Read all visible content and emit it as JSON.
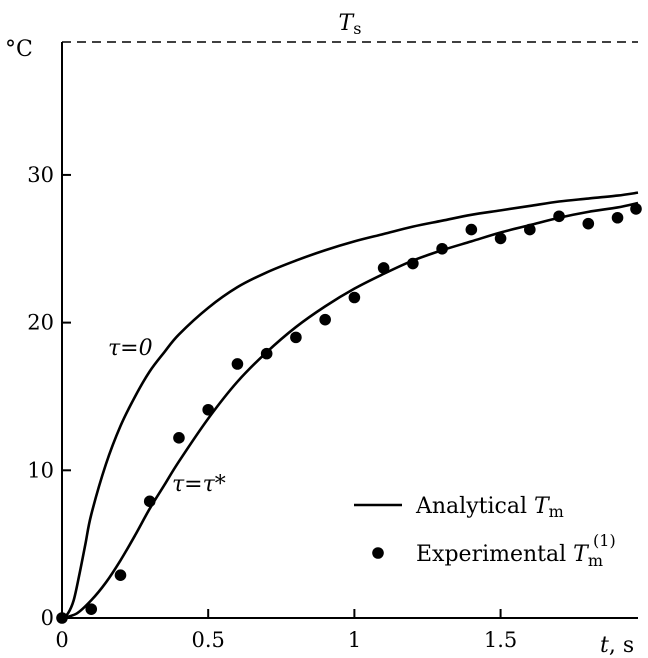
{
  "chart_data": {
    "type": "line",
    "x_axis": {
      "label_var": "t",
      "label_unit": ", s",
      "range": [
        0,
        1.97
      ],
      "ticks": [
        "0",
        "0.5",
        "1",
        "1.5"
      ],
      "tick_values": [
        0,
        0.5,
        1,
        1.5
      ]
    },
    "y_axis": {
      "unit_label": "°C",
      "range": [
        0,
        39
      ],
      "ticks": [
        "0",
        "10",
        "20",
        "30"
      ],
      "tick_values": [
        0,
        10,
        20,
        30
      ]
    },
    "reference_line": {
      "label_var": "T",
      "label_sub": "s",
      "y": 39,
      "style": "dashed"
    },
    "series": [
      {
        "kind": "line",
        "annotation": "τ=0",
        "x": [
          0,
          0.02,
          0.04,
          0.06,
          0.08,
          0.1,
          0.15,
          0.2,
          0.25,
          0.3,
          0.35,
          0.4,
          0.5,
          0.6,
          0.7,
          0.8,
          0.9,
          1.0,
          1.1,
          1.2,
          1.3,
          1.4,
          1.5,
          1.6,
          1.7,
          1.8,
          1.9,
          1.97
        ],
        "y": [
          0,
          0.3,
          1.2,
          3.0,
          5.0,
          7.0,
          10.4,
          13.0,
          15.0,
          16.7,
          18.0,
          19.2,
          21.0,
          22.4,
          23.4,
          24.2,
          24.9,
          25.5,
          26.0,
          26.5,
          26.9,
          27.3,
          27.6,
          27.9,
          28.2,
          28.4,
          28.6,
          28.8
        ]
      },
      {
        "kind": "line",
        "annotation": "τ=τ*",
        "x": [
          0,
          0.05,
          0.1,
          0.15,
          0.2,
          0.25,
          0.3,
          0.35,
          0.4,
          0.5,
          0.6,
          0.7,
          0.8,
          0.9,
          1.0,
          1.1,
          1.2,
          1.3,
          1.4,
          1.5,
          1.6,
          1.7,
          1.8,
          1.9,
          1.97
        ],
        "y": [
          0,
          0.3,
          1.2,
          2.4,
          3.9,
          5.6,
          7.4,
          9.0,
          10.6,
          13.5,
          16.0,
          18.0,
          19.7,
          21.1,
          22.3,
          23.3,
          24.2,
          24.9,
          25.5,
          26.1,
          26.6,
          27.1,
          27.5,
          27.8,
          28.1
        ]
      },
      {
        "kind": "scatter",
        "x": [
          0,
          0.1,
          0.2,
          0.3,
          0.4,
          0.5,
          0.6,
          0.7,
          0.8,
          0.9,
          1.0,
          1.1,
          1.2,
          1.3,
          1.4,
          1.5,
          1.6,
          1.7,
          1.8,
          1.9,
          2.0
        ],
        "y": [
          0,
          0.6,
          2.9,
          7.9,
          12.2,
          14.1,
          17.2,
          17.9,
          19.0,
          20.2,
          21.7,
          23.7,
          24.0,
          25.0,
          26.3,
          25.7,
          26.3,
          27.2,
          26.7,
          27.1,
          27.7
        ]
      }
    ],
    "legend": {
      "position": "bottom-right",
      "items": [
        {
          "symbol": "line",
          "text": "Analytical ",
          "var": "T",
          "sub": "m",
          "sup": ""
        },
        {
          "symbol": "dot",
          "text": "Experimental ",
          "var": "T",
          "sub": "m",
          "sup": "(1)"
        }
      ]
    }
  }
}
